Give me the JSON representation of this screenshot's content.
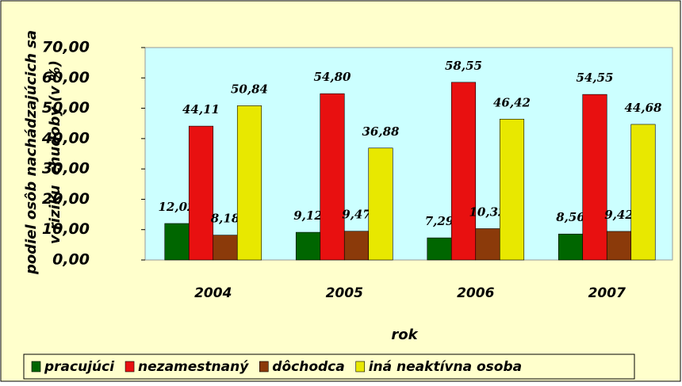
{
  "chart_data": {
    "type": "bar",
    "ylabel": [
      "podiel osôb nachádzajúcich sa",
      "v riziku  chudoby (v %)"
    ],
    "xlabel": "rok",
    "categories": [
      "2004",
      "2005",
      "2006",
      "2007"
    ],
    "series": [
      {
        "name": "pracujúci",
        "color": "#006600",
        "values": [
          12.02,
          9.12,
          7.29,
          8.56
        ],
        "value_labels": [
          "12,02",
          "9,12",
          "7,29",
          "8,56"
        ]
      },
      {
        "name": "nezamestnaný",
        "color": "#e81010",
        "values": [
          44.11,
          54.8,
          58.55,
          54.55
        ],
        "value_labels": [
          "44,11",
          "54,80",
          "58,55",
          "54,55"
        ]
      },
      {
        "name": "dôchodca",
        "color": "#8b3a0a",
        "values": [
          8.18,
          9.47,
          10.32,
          9.42
        ],
        "value_labels": [
          "8,18",
          "9,47",
          "10,32",
          "9,42"
        ]
      },
      {
        "name": "iná neaktívna osoba",
        "color": "#e8e800",
        "values": [
          50.84,
          36.88,
          46.42,
          44.68
        ],
        "value_labels": [
          "50,84",
          "36,88",
          "46,42",
          "44,68"
        ]
      }
    ],
    "ylim": [
      0,
      70
    ],
    "yticks": [
      {
        "value": 0,
        "label": "0,00"
      },
      {
        "value": 10,
        "label": "10,00"
      },
      {
        "value": 20,
        "label": "20,00"
      },
      {
        "value": 30,
        "label": "30,00"
      },
      {
        "value": 40,
        "label": "40,00"
      },
      {
        "value": 50,
        "label": "50,00"
      },
      {
        "value": 60,
        "label": "60,00"
      },
      {
        "value": 70,
        "label": "70,00"
      }
    ],
    "legend": "bottom"
  }
}
